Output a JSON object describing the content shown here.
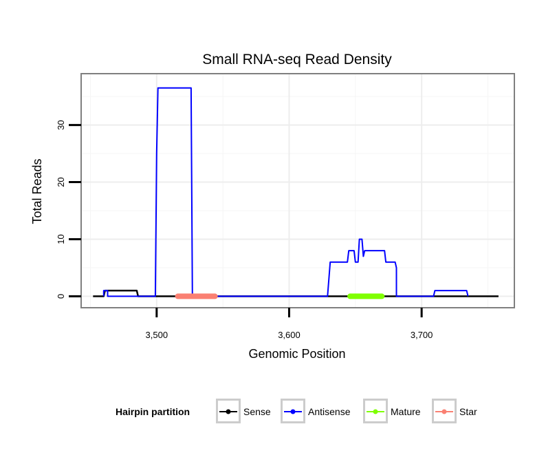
{
  "chart_data": {
    "type": "line",
    "title": "Small RNA-seq Read Density",
    "xlabel": "Genomic Position",
    "ylabel": "Total Reads",
    "xlim": [
      3443,
      3770
    ],
    "ylim": [
      -2,
      39
    ],
    "x_ticks": [
      3500,
      3600,
      3700
    ],
    "x_tick_labels": [
      "3,500",
      "3,600",
      "3,700"
    ],
    "y_ticks": [
      0,
      10,
      20,
      30
    ],
    "y_tick_labels": [
      "0",
      "10",
      "20",
      "30"
    ],
    "grid": true,
    "legend": {
      "title": "Hairpin partition",
      "position": "bottom",
      "entries": [
        {
          "name": "Sense",
          "color": "#000000"
        },
        {
          "name": "Antisense",
          "color": "#0000ff"
        },
        {
          "name": "Mature",
          "color": "#7fff00"
        },
        {
          "name": "Star",
          "color": "#fa8072"
        }
      ]
    },
    "series": [
      {
        "name": "Sense",
        "color": "#000000",
        "width": 2.5,
        "points": [
          [
            3452,
            0
          ],
          [
            3460,
            0
          ],
          [
            3461,
            1
          ],
          [
            3485,
            1
          ],
          [
            3486,
            0
          ],
          [
            3758,
            0
          ]
        ]
      },
      {
        "name": "Antisense",
        "color": "#0000ff",
        "width": 2,
        "points": [
          [
            3460,
            0
          ],
          [
            3460,
            1
          ],
          [
            3463,
            1
          ],
          [
            3463,
            0
          ],
          [
            3499,
            0
          ],
          [
            3500,
            25
          ],
          [
            3501,
            36.5
          ],
          [
            3526,
            36.5
          ],
          [
            3527,
            0
          ],
          [
            3629,
            0
          ],
          [
            3631,
            6
          ],
          [
            3644,
            6
          ],
          [
            3645,
            8
          ],
          [
            3649,
            8
          ],
          [
            3650,
            6
          ],
          [
            3652,
            6
          ],
          [
            3653,
            10
          ],
          [
            3655,
            10
          ],
          [
            3656,
            7
          ],
          [
            3657,
            8
          ],
          [
            3672,
            8
          ],
          [
            3673,
            6
          ],
          [
            3680,
            6
          ],
          [
            3681,
            5
          ],
          [
            3681,
            0
          ],
          [
            3709,
            0
          ],
          [
            3710,
            1
          ],
          [
            3734,
            1
          ],
          [
            3735,
            0
          ]
        ]
      },
      {
        "name": "Star",
        "color": "#fa8072",
        "width": 8,
        "points": [
          [
            3516,
            0
          ],
          [
            3544,
            0
          ]
        ]
      },
      {
        "name": "Mature",
        "color": "#7fff00",
        "width": 8,
        "points": [
          [
            3646,
            0
          ],
          [
            3670,
            0
          ]
        ]
      }
    ]
  }
}
